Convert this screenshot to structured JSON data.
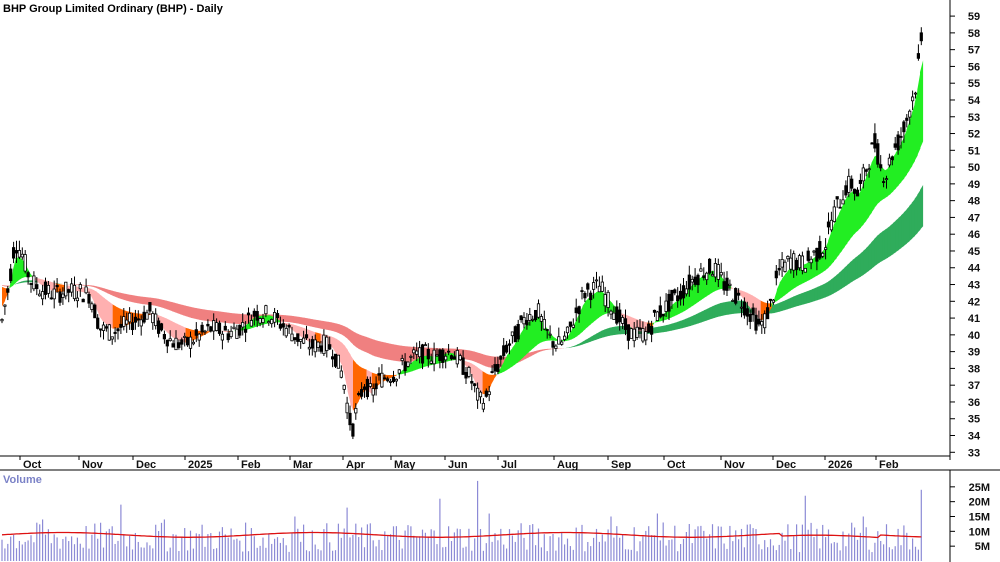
{
  "chart_data": [
    {
      "type": "candlestick",
      "title": "BHP Group Limited Ordinary (BHP) - Daily",
      "y_axis": {
        "side": "right",
        "ylim": [
          32.6,
          59.9
        ],
        "ticks": [
          33,
          34,
          35,
          36,
          37,
          38,
          39,
          40,
          41,
          42,
          43,
          44,
          45,
          46,
          47,
          48,
          49,
          50,
          51,
          52,
          53,
          54,
          55,
          56,
          57,
          58,
          59
        ]
      },
      "x_axis": {
        "labels": [
          "Oct",
          "Nov",
          "Dec",
          "2025",
          "Feb",
          "Mar",
          "Apr",
          "May",
          "Jun",
          "Jul",
          "Aug",
          "Sep",
          "Oct",
          "Nov",
          "Dec",
          "2026",
          "Feb"
        ]
      },
      "price_path": [
        [
          0,
          40.2
        ],
        [
          4,
          41.5
        ],
        [
          9,
          43.0
        ],
        [
          15,
          45.6
        ],
        [
          22,
          44.8
        ],
        [
          30,
          43.3
        ],
        [
          38,
          42.8
        ],
        [
          46,
          42.6
        ],
        [
          55,
          42.4
        ],
        [
          65,
          42.6
        ],
        [
          78,
          42.6
        ],
        [
          90,
          42.4
        ],
        [
          100,
          40.4
        ],
        [
          112,
          40.1
        ],
        [
          125,
          40.6
        ],
        [
          140,
          41.0
        ],
        [
          150,
          41.4
        ],
        [
          160,
          40.3
        ],
        [
          172,
          39.6
        ],
        [
          185,
          39.4
        ],
        [
          198,
          39.9
        ],
        [
          212,
          40.4
        ],
        [
          228,
          40.1
        ],
        [
          242,
          40.5
        ],
        [
          255,
          41.3
        ],
        [
          270,
          41.2
        ],
        [
          282,
          40.6
        ],
        [
          292,
          40.1
        ],
        [
          300,
          39.7
        ],
        [
          312,
          39.3
        ],
        [
          322,
          39.5
        ],
        [
          332,
          39.2
        ],
        [
          338,
          38.3
        ],
        [
          343,
          37.5
        ],
        [
          348,
          35.5
        ],
        [
          352,
          34.2
        ],
        [
          356,
          35.4
        ],
        [
          360,
          36.3
        ],
        [
          365,
          37.1
        ],
        [
          372,
          36.4
        ],
        [
          378,
          37.3
        ],
        [
          386,
          37.5
        ],
        [
          396,
          37.7
        ],
        [
          404,
          38.2
        ],
        [
          414,
          38.7
        ],
        [
          424,
          38.9
        ],
        [
          434,
          38.7
        ],
        [
          442,
          38.9
        ],
        [
          452,
          39.0
        ],
        [
          462,
          38.2
        ],
        [
          470,
          37.5
        ],
        [
          477,
          36.4
        ],
        [
          482,
          36.0
        ],
        [
          487,
          36.3
        ],
        [
          492,
          37.5
        ],
        [
          500,
          38.4
        ],
        [
          507,
          39.3
        ],
        [
          514,
          39.8
        ],
        [
          520,
          40.5
        ],
        [
          526,
          41.1
        ],
        [
          532,
          41.2
        ],
        [
          538,
          41.4
        ],
        [
          544,
          40.4
        ],
        [
          552,
          39.6
        ],
        [
          560,
          39.4
        ],
        [
          568,
          40.0
        ],
        [
          576,
          41.3
        ],
        [
          584,
          42.5
        ],
        [
          592,
          42.7
        ],
        [
          600,
          42.9
        ],
        [
          608,
          42.0
        ],
        [
          616,
          41.3
        ],
        [
          624,
          40.5
        ],
        [
          630,
          40.1
        ],
        [
          636,
          40.0
        ],
        [
          642,
          40.1
        ],
        [
          648,
          40.1
        ],
        [
          656,
          41.2
        ],
        [
          664,
          41.5
        ],
        [
          672,
          42.1
        ],
        [
          680,
          42.4
        ],
        [
          688,
          43.0
        ],
        [
          696,
          43.5
        ],
        [
          704,
          43.8
        ],
        [
          712,
          44.0
        ],
        [
          718,
          43.7
        ],
        [
          724,
          43.0
        ],
        [
          730,
          42.7
        ],
        [
          736,
          42.3
        ],
        [
          742,
          42.0
        ],
        [
          748,
          41.4
        ],
        [
          754,
          41.0
        ],
        [
          760,
          40.5
        ],
        [
          764,
          40.8
        ],
        [
          768,
          41.4
        ],
        [
          772,
          42.0
        ],
        [
          778,
          43.7
        ],
        [
          784,
          44.1
        ],
        [
          792,
          44.5
        ],
        [
          800,
          44.2
        ],
        [
          808,
          44.4
        ],
        [
          814,
          44.8
        ],
        [
          820,
          45.0
        ],
        [
          826,
          45.5
        ],
        [
          832,
          47.0
        ],
        [
          840,
          48.0
        ],
        [
          846,
          48.8
        ],
        [
          852,
          49.0
        ],
        [
          858,
          48.3
        ],
        [
          864,
          49.5
        ],
        [
          870,
          50.7
        ],
        [
          876,
          51.5
        ],
        [
          880,
          50.0
        ],
        [
          886,
          49.5
        ],
        [
          892,
          50.8
        ],
        [
          898,
          51.5
        ],
        [
          904,
          52.3
        ],
        [
          908,
          53.2
        ],
        [
          912,
          54.0
        ],
        [
          916,
          55.0
        ],
        [
          920,
          57.0
        ],
        [
          924,
          58.0
        ]
      ],
      "ema_bands": [
        {
          "name": "short-term band",
          "up_color": "#22ee22",
          "down_color": "#ff6600",
          "up_color_2": "#ffb0b0"
        },
        {
          "name": "long-term band",
          "up_color": "#2fac5b",
          "down_color": "#f08080"
        }
      ]
    },
    {
      "type": "bar",
      "title": "Volume",
      "ylim": [
        0,
        30
      ],
      "ticks": [
        "25M",
        "20M",
        "15M",
        "10M",
        "5M"
      ],
      "tick_values": [
        25,
        20,
        15,
        10,
        5
      ],
      "average_line_color": "#dd1111",
      "bar_color": "#8c8ad6",
      "spikes": [
        [
          43,
          14
        ],
        [
          122,
          19
        ],
        [
          165,
          14
        ],
        [
          296,
          15
        ],
        [
          348,
          18
        ],
        [
          441,
          21
        ],
        [
          478,
          27
        ],
        [
          488,
          16
        ],
        [
          612,
          15
        ],
        [
          656,
          16
        ],
        [
          806,
          22
        ],
        [
          864,
          15
        ],
        [
          922,
          24
        ]
      ],
      "typical_range": [
        3,
        13
      ],
      "average_level": 8.8
    }
  ]
}
